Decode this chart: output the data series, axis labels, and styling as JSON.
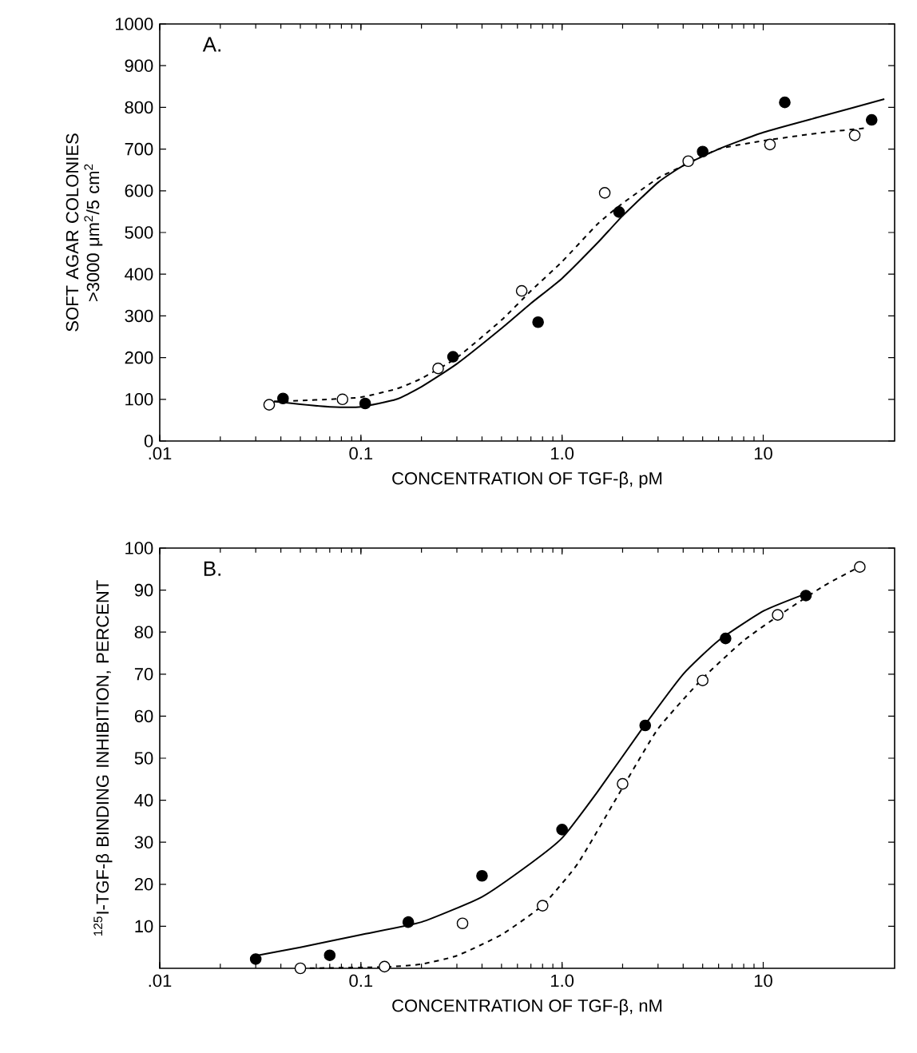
{
  "chart_data": [
    {
      "type": "scatter",
      "title": "A.",
      "xlabel": "CONCENTRATION OF TGF-β, pM",
      "ylabel": "SOFT AGAR COLONIES >3000 μm$^{2}$/5 cm$^{2}$",
      "log": "x",
      "xlim": [
        0.01,
        45
      ],
      "ylim": [
        0,
        1000
      ],
      "xticks": [
        {
          "value": 0.01,
          "label": ".01"
        },
        {
          "value": 0.1,
          "label": "0.1"
        },
        {
          "value": 1,
          "label": "1.0"
        },
        {
          "value": 10,
          "label": "10"
        }
      ],
      "yticks": [
        0,
        100,
        200,
        300,
        400,
        500,
        600,
        700,
        800,
        900,
        1000
      ],
      "series": [
        {
          "marker": "circle",
          "color": "#000000",
          "x": [
            0.041,
            0.105,
            0.287,
            0.76,
            1.92,
            5.0,
            12.8,
            34.6
          ],
          "values": [
            102,
            90,
            202,
            285,
            549,
            694,
            812,
            770
          ]
        },
        {
          "marker": "circle",
          "color": "#ffffff",
          "x": [
            0.035,
            0.081,
            0.242,
            0.63,
            1.63,
            4.24,
            10.8,
            28.5
          ],
          "values": [
            87,
            100,
            174,
            360,
            595,
            671,
            711,
            733
          ]
        },
        {
          "type": "line",
          "marker": "none",
          "line_style": "solid",
          "color": "#000000",
          "x": [
            0.037,
            0.05,
            0.07,
            0.1,
            0.15,
            0.2,
            0.3,
            0.5,
            0.7,
            1.0,
            1.5,
            2,
            3,
            4,
            6,
            10,
            20,
            40
          ],
          "values": [
            95,
            88,
            82,
            82,
            100,
            130,
            185,
            270,
            330,
            390,
            475,
            540,
            620,
            660,
            700,
            740,
            780,
            820
          ]
        },
        {
          "type": "line",
          "marker": "none",
          "line_style": "dashed",
          "color": "#000000",
          "x": [
            0.037,
            0.05,
            0.07,
            0.1,
            0.15,
            0.2,
            0.3,
            0.5,
            0.7,
            1.0,
            1.5,
            2,
            3,
            4,
            6,
            10,
            20,
            32
          ],
          "values": [
            95,
            97,
            100,
            105,
            125,
            150,
            200,
            290,
            360,
            430,
            520,
            570,
            630,
            660,
            700,
            720,
            740,
            750
          ]
        }
      ]
    },
    {
      "type": "scatter",
      "title": "B.",
      "xlabel": "CONCENTRATION OF TGF-β, nM",
      "ylabel": "$^{125}$I-TGF-β BINDING INHIBITION, PERCENT",
      "log": "x",
      "xlim": [
        0.01,
        45
      ],
      "ylim": [
        0,
        100
      ],
      "xticks": [
        {
          "value": 0.01,
          "label": ".01"
        },
        {
          "value": 0.1,
          "label": "0.1"
        },
        {
          "value": 1,
          "label": "1.0"
        },
        {
          "value": 10,
          "label": "10"
        }
      ],
      "yticks": [
        10,
        20,
        30,
        40,
        50,
        60,
        70,
        80,
        90,
        100
      ],
      "series": [
        {
          "marker": "circle",
          "color": "#000000",
          "x": [
            0.03,
            0.07,
            0.172,
            0.4,
            1.0,
            2.59,
            6.5,
            16.3
          ],
          "values": [
            2.2,
            3.1,
            11,
            22,
            33,
            57.8,
            78.5,
            88.7
          ]
        },
        {
          "marker": "circle",
          "color": "#ffffff",
          "x": [
            0.05,
            0.131,
            0.32,
            0.8,
            2.0,
            5.0,
            11.8,
            30.2
          ],
          "values": [
            0,
            0.4,
            10.7,
            14.9,
            43.9,
            68.5,
            84.1,
            95.5
          ]
        },
        {
          "type": "line",
          "marker": "none",
          "line_style": "solid",
          "color": "#000000",
          "x": [
            0.03,
            0.05,
            0.1,
            0.2,
            0.4,
            0.7,
            1.0,
            1.5,
            2.5,
            4,
            6,
            10,
            16
          ],
          "values": [
            3,
            5,
            8,
            11,
            17,
            25,
            31,
            42,
            57,
            70,
            78,
            85,
            89
          ]
        },
        {
          "type": "line",
          "marker": "none",
          "line_style": "dashed",
          "color": "#000000",
          "x": [
            0.05,
            0.13,
            0.2,
            0.3,
            0.5,
            0.8,
            1.2,
            2,
            3,
            5,
            8,
            12,
            20,
            30
          ],
          "values": [
            0,
            0.3,
            1,
            3,
            8,
            15,
            25,
            43,
            57,
            69,
            78,
            84,
            91,
            95.5
          ]
        }
      ]
    }
  ]
}
